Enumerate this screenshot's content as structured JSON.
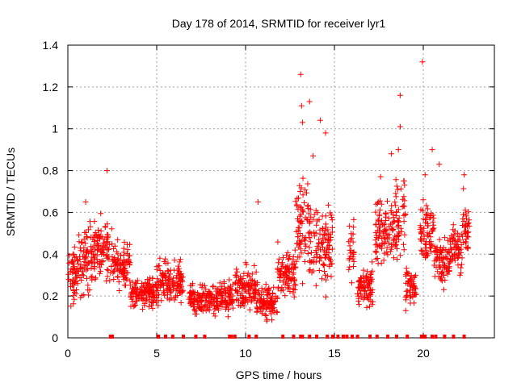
{
  "chart_data": {
    "type": "scatter",
    "title": "Day 178 of 2014, SRMTID for receiver lyr1",
    "xlabel": "GPS time / hours",
    "ylabel": "SRMTID / TECUs",
    "xlim": [
      0,
      24
    ],
    "ylim": [
      0,
      1.4
    ],
    "x_ticks": [
      0,
      5,
      10,
      15,
      20
    ],
    "y_ticks": [
      0,
      0.2,
      0.4,
      0.6,
      0.8,
      1,
      1.2,
      1.4
    ],
    "x_tick_labels": [
      "0",
      "5",
      "10",
      "15",
      "20"
    ],
    "y_tick_labels": [
      "0",
      "0.2",
      "0.4",
      "0.6",
      "0.8",
      "1",
      "1.2",
      "1.4"
    ],
    "grid": true,
    "marker": "+",
    "color": "#ff0000",
    "series": [
      {
        "name": "SRMTID",
        "clusters": [
          {
            "x0": 0.0,
            "x1": 0.6,
            "ylo": 0.1,
            "yhi": 0.5
          },
          {
            "x0": 0.6,
            "x1": 1.4,
            "ylo": 0.12,
            "yhi": 0.62
          },
          {
            "x0": 1.4,
            "x1": 2.5,
            "ylo": 0.22,
            "yhi": 0.62
          },
          {
            "x0": 2.5,
            "x1": 3.5,
            "ylo": 0.2,
            "yhi": 0.48
          },
          {
            "x0": 3.5,
            "x1": 5.0,
            "ylo": 0.12,
            "yhi": 0.32
          },
          {
            "x0": 5.0,
            "x1": 6.5,
            "ylo": 0.12,
            "yhi": 0.42
          },
          {
            "x0": 6.8,
            "x1": 9.3,
            "ylo": 0.08,
            "yhi": 0.3
          },
          {
            "x0": 9.4,
            "x1": 10.6,
            "ylo": 0.1,
            "yhi": 0.38
          },
          {
            "x0": 10.6,
            "x1": 11.8,
            "ylo": 0.06,
            "yhi": 0.28
          },
          {
            "x0": 11.8,
            "x1": 12.8,
            "ylo": 0.15,
            "yhi": 0.48
          },
          {
            "x0": 12.8,
            "x1": 13.6,
            "ylo": 0.2,
            "yhi": 0.85
          },
          {
            "x0": 13.6,
            "x1": 14.9,
            "ylo": 0.18,
            "yhi": 0.7
          },
          {
            "x0": 15.8,
            "x1": 16.1,
            "ylo": 0.25,
            "yhi": 0.6
          },
          {
            "x0": 16.3,
            "x1": 17.2,
            "ylo": 0.1,
            "yhi": 0.38
          },
          {
            "x0": 17.3,
            "x1": 18.4,
            "ylo": 0.28,
            "yhi": 0.72
          },
          {
            "x0": 18.4,
            "x1": 19.0,
            "ylo": 0.3,
            "yhi": 0.8
          },
          {
            "x0": 19.0,
            "x1": 19.6,
            "ylo": 0.08,
            "yhi": 0.42
          },
          {
            "x0": 19.8,
            "x1": 20.6,
            "ylo": 0.3,
            "yhi": 0.72
          },
          {
            "x0": 20.6,
            "x1": 21.5,
            "ylo": 0.2,
            "yhi": 0.55
          },
          {
            "x0": 21.5,
            "x1": 22.2,
            "ylo": 0.25,
            "yhi": 0.6
          },
          {
            "x0": 22.2,
            "x1": 22.6,
            "ylo": 0.35,
            "yhi": 0.72
          }
        ],
        "outliers": [
          {
            "x": 2.2,
            "y": 0.8
          },
          {
            "x": 1.0,
            "y": 0.65
          },
          {
            "x": 10.7,
            "y": 0.65
          },
          {
            "x": 13.1,
            "y": 1.26
          },
          {
            "x": 13.15,
            "y": 1.11
          },
          {
            "x": 13.6,
            "y": 1.13
          },
          {
            "x": 13.2,
            "y": 1.03
          },
          {
            "x": 14.2,
            "y": 1.04
          },
          {
            "x": 14.5,
            "y": 0.98
          },
          {
            "x": 13.8,
            "y": 0.87
          },
          {
            "x": 18.7,
            "y": 1.16
          },
          {
            "x": 18.7,
            "y": 1.01
          },
          {
            "x": 18.2,
            "y": 0.88
          },
          {
            "x": 18.6,
            "y": 0.9
          },
          {
            "x": 19.95,
            "y": 1.32
          },
          {
            "x": 20.5,
            "y": 0.9
          },
          {
            "x": 20.9,
            "y": 0.83
          },
          {
            "x": 17.6,
            "y": 0.77
          },
          {
            "x": 22.3,
            "y": 0.78
          },
          {
            "x": 20.1,
            "y": 0.78
          }
        ]
      }
    ],
    "gap_markers_x": [
      2.4,
      2.5,
      5.1,
      5.5,
      5.9,
      6.5,
      7.2,
      7.7,
      9.1,
      9.2,
      9.4,
      10.2,
      10.6,
      12.1,
      12.7,
      13.1,
      13.2,
      13.6,
      14.0,
      14.6,
      14.9,
      15.2,
      15.5,
      15.7,
      16.0,
      16.3,
      17.0,
      17.4,
      18.0,
      18.5,
      19.1,
      19.9,
      20.1,
      20.5,
      20.7,
      21.2,
      21.7,
      22.3
    ]
  }
}
